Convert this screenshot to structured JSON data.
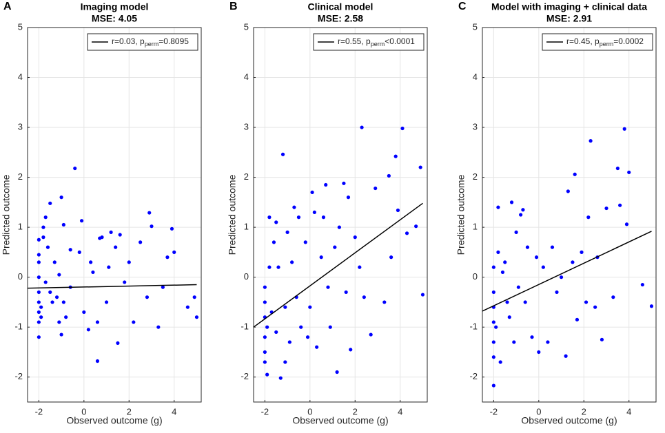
{
  "chart_data": [
    {
      "type": "scatter",
      "panel_label": "A",
      "title": [
        "Imaging model",
        "MSE: 4.05"
      ],
      "x_label": "Observed outcome (g)",
      "y_label": "Predicted outcome",
      "xlim": [
        -2.5,
        5.2
      ],
      "ylim": [
        -2.5,
        5
      ],
      "xticks": [
        -2,
        0,
        2,
        4
      ],
      "yticks": [
        -2,
        -1,
        0,
        1,
        2,
        3,
        4,
        5
      ],
      "grid": true,
      "points": {
        "color": "#0000ff",
        "x": [
          -2,
          -2,
          -2,
          -2,
          -2,
          -2,
          -2,
          -2,
          -2,
          -1.9,
          -1.9,
          -1.8,
          -1.8,
          -1.7,
          -1.7,
          -1.6,
          -1.5,
          -1.5,
          -1.4,
          -1.3,
          -1.2,
          -1.1,
          -1.1,
          -1,
          -1,
          -0.9,
          -0.9,
          -0.8,
          -0.6,
          -0.6,
          -0.4,
          -0.2,
          -0.1,
          0,
          0.2,
          0.3,
          0.4,
          0.6,
          0.6,
          0.7,
          0.8,
          1,
          1.1,
          1.2,
          1.4,
          1.5,
          1.6,
          1.8,
          2,
          2.2,
          2.5,
          2.8,
          2.9,
          3,
          3.3,
          3.5,
          3.7,
          3.9,
          4,
          4.6,
          4.9,
          5
        ],
        "y": [
          -1.2,
          -0.9,
          -0.7,
          -0.5,
          -0.3,
          0,
          0.3,
          0.45,
          0.75,
          -0.8,
          -0.6,
          0.8,
          1.0,
          -0.1,
          1.2,
          0.6,
          1.48,
          -0.3,
          -0.5,
          0.3,
          -0.4,
          0.05,
          -0.9,
          1.6,
          -1.15,
          1.05,
          -0.5,
          -0.8,
          0.55,
          -0.2,
          2.18,
          0.5,
          1.13,
          -0.7,
          -1.05,
          0.3,
          0.1,
          -1.68,
          -0.9,
          0.78,
          0.8,
          -0.5,
          0.2,
          0.9,
          0.6,
          -1.32,
          0.85,
          -0.1,
          0.3,
          -0.9,
          0.7,
          -0.4,
          1.29,
          1.02,
          -1.0,
          -0.2,
          0.4,
          0.97,
          0.5,
          -0.6,
          -0.4,
          -0.8
        ]
      },
      "fit": {
        "name": [
          "r=0.03, p",
          "perm",
          "=0.8095"
        ],
        "color": "#000000",
        "x": [
          -2.5,
          5
        ],
        "y": [
          -0.22,
          -0.15
        ]
      }
    },
    {
      "type": "scatter",
      "panel_label": "B",
      "title": [
        "Clinical model",
        "MSE: 2.58"
      ],
      "x_label": "Observed outcome (g)",
      "y_label": "Predicted outcome",
      "xlim": [
        -2.5,
        5.2
      ],
      "ylim": [
        -2.5,
        5
      ],
      "xticks": [
        -2,
        0,
        2,
        4
      ],
      "yticks": [
        -2,
        -1,
        0,
        1,
        2,
        3,
        4,
        5
      ],
      "grid": true,
      "points": {
        "color": "#0000ff",
        "x": [
          -2,
          -2,
          -2,
          -2,
          -2,
          -2,
          -1.9,
          -1.9,
          -1.8,
          -1.8,
          -1.7,
          -1.6,
          -1.5,
          -1.5,
          -1.4,
          -1.3,
          -1.2,
          -1.1,
          -1.1,
          -1,
          -0.9,
          -0.8,
          -0.7,
          -0.6,
          -0.5,
          -0.4,
          -0.2,
          -0.1,
          0,
          0.1,
          0.2,
          0.3,
          0.5,
          0.6,
          0.7,
          0.8,
          0.9,
          1.1,
          1.2,
          1.3,
          1.5,
          1.6,
          1.7,
          1.8,
          2,
          2.2,
          2.3,
          2.4,
          2.7,
          2.9,
          3.3,
          3.5,
          3.6,
          3.8,
          3.9,
          4.1,
          4.3,
          4.7,
          4.9,
          5
        ],
        "y": [
          -1.7,
          -1.5,
          -1.2,
          -0.8,
          -0.5,
          -0.2,
          -1.95,
          -1.0,
          0.2,
          1.2,
          -0.7,
          0.7,
          1.1,
          -1.1,
          0.2,
          -2.02,
          2.46,
          -1.7,
          -0.6,
          0.9,
          -1.3,
          0.3,
          1.4,
          -0.4,
          1.2,
          -1.0,
          0.7,
          -1.2,
          -0.6,
          1.7,
          1.3,
          -1.4,
          0.4,
          1.2,
          1.85,
          -0.2,
          -1.0,
          0.6,
          -1.9,
          1.0,
          1.88,
          -0.3,
          1.6,
          -1.45,
          0.8,
          0.2,
          3.0,
          -0.4,
          -1.15,
          1.78,
          -0.5,
          2.03,
          0.4,
          2.42,
          1.34,
          2.98,
          0.88,
          1.02,
          2.2,
          -0.35
        ]
      },
      "fit": {
        "name": [
          "r=0.55, p",
          "perm",
          "<0.0001"
        ],
        "color": "#000000",
        "x": [
          -2.5,
          5
        ],
        "y": [
          -1.0,
          1.48
        ]
      }
    },
    {
      "type": "scatter",
      "panel_label": "C",
      "title": [
        "Model with imaging + clinical data",
        "MSE: 2.91"
      ],
      "x_label": "Observed outcome (g)",
      "y_label": "Predicted outcome",
      "xlim": [
        -2.5,
        5.2
      ],
      "ylim": [
        -2.5,
        5
      ],
      "xticks": [
        -2,
        0,
        2,
        4
      ],
      "yticks": [
        -2,
        -1,
        0,
        1,
        2,
        3,
        4,
        5
      ],
      "grid": true,
      "points": {
        "color": "#0000ff",
        "x": [
          -2,
          -2,
          -2,
          -2,
          -2,
          -2,
          -2,
          -1.9,
          -1.8,
          -1.8,
          -1.7,
          -1.6,
          -1.5,
          -1.4,
          -1.3,
          -1.2,
          -1.1,
          -1,
          -0.9,
          -0.8,
          -0.7,
          -0.6,
          -0.5,
          -0.3,
          -0.1,
          0,
          0.2,
          0.4,
          0.6,
          0.8,
          1,
          1.2,
          1.3,
          1.5,
          1.6,
          1.7,
          1.9,
          2.1,
          2.2,
          2.3,
          2.5,
          2.6,
          2.8,
          3,
          3.3,
          3.5,
          3.6,
          3.8,
          3.9,
          4,
          4.6,
          5
        ],
        "y": [
          -2.17,
          -1.6,
          -1.3,
          -0.9,
          -0.6,
          -0.3,
          0.2,
          -1.0,
          1.4,
          0.5,
          -1.7,
          0.1,
          0.3,
          -0.5,
          -0.8,
          1.5,
          -1.3,
          0.9,
          -0.2,
          1.25,
          1.35,
          -0.5,
          0.6,
          -1.2,
          0.4,
          -1.5,
          0.2,
          -1.3,
          0.6,
          -0.3,
          0,
          -1.58,
          1.72,
          0.3,
          2.06,
          -0.85,
          0.5,
          -0.5,
          1.2,
          2.73,
          -0.6,
          0.4,
          -1.25,
          1.38,
          -0.4,
          2.18,
          1.44,
          2.97,
          1.06,
          2.1,
          -0.15,
          -0.58
        ]
      },
      "fit": {
        "name": [
          "r=0.45, p",
          "perm",
          "=0.0002"
        ],
        "color": "#000000",
        "x": [
          -2.5,
          5
        ],
        "y": [
          -0.68,
          0.92
        ]
      }
    }
  ]
}
